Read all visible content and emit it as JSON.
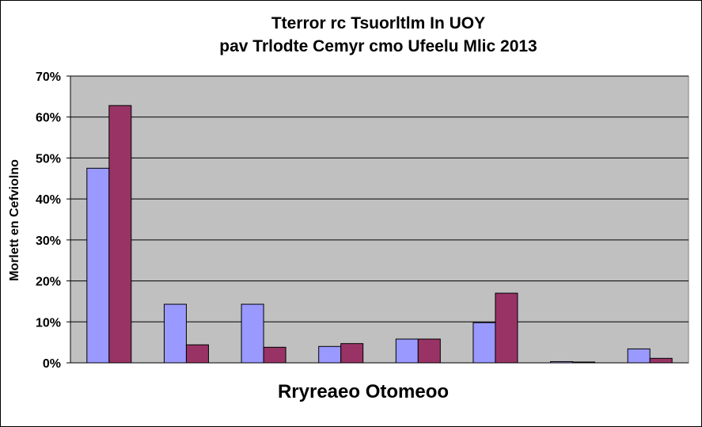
{
  "chart_data": {
    "type": "bar",
    "title_lines": [
      "Tterror rc Tsuorltlm In UOY",
      "pav Trlodte Cemyr cmo Ufeelu Mlic 2013"
    ],
    "xlabel": "Rryreaeo Otomeoo",
    "ylabel": "Morlett en Cefviolno",
    "ylim": [
      0,
      70
    ],
    "yticks": [
      0,
      10,
      20,
      30,
      40,
      50,
      60,
      70
    ],
    "ytick_labels": [
      "0%",
      "10%",
      "20%",
      "30%",
      "40%",
      "50%",
      "60%",
      "70%"
    ],
    "grid": true,
    "legend": "none",
    "categories": [
      "",
      "",
      "",
      "",
      "",
      "",
      "",
      ""
    ],
    "series": [
      {
        "color": "#9999ff",
        "values": [
          47.5,
          14.3,
          14.3,
          4.0,
          5.8,
          9.8,
          0.3,
          3.4
        ]
      },
      {
        "color": "#993366",
        "values": [
          62.8,
          4.4,
          3.8,
          4.7,
          5.8,
          17.0,
          0.2,
          1.1
        ]
      }
    ],
    "plot_background": "#c0c0c0"
  }
}
